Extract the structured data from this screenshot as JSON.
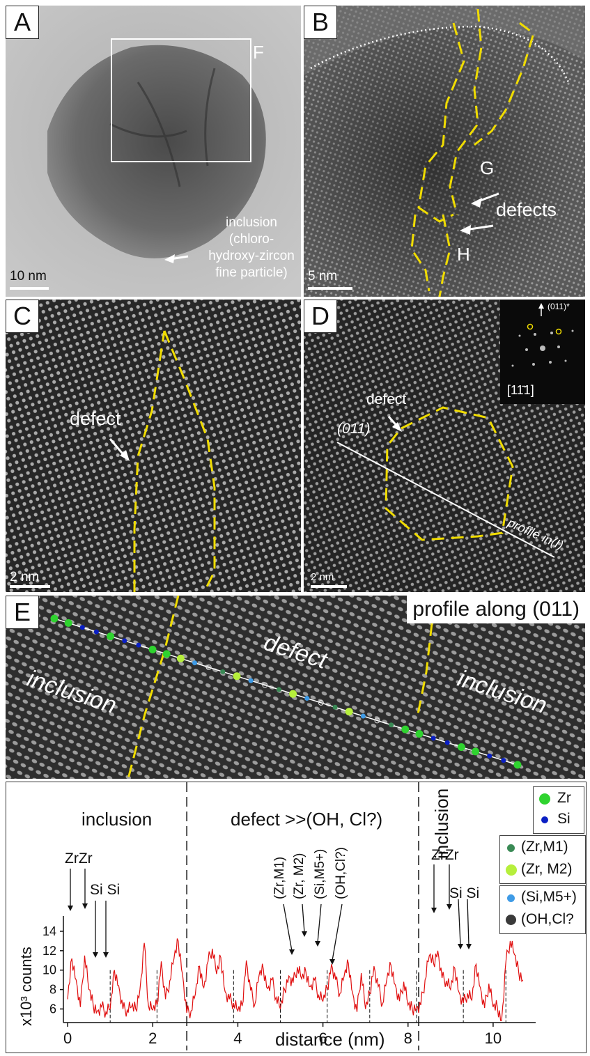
{
  "panels": {
    "A": {
      "letter": "A",
      "box_label": "F",
      "inclusion_text": [
        "inclusion",
        "(chloro-",
        "hydroxy-zircon",
        "fine particle)"
      ],
      "scale": "10 nm"
    },
    "B": {
      "letter": "B",
      "labels": {
        "g": "G",
        "h": "H",
        "defects": "defects"
      },
      "scale": "5 nm"
    },
    "C": {
      "letter": "C",
      "defect": "defect",
      "scale": "2 nm"
    },
    "D": {
      "letter": "D",
      "defect": "defect",
      "plane": "(011)",
      "profile": "profile in(I)",
      "fft_label": "[11̄1]",
      "fft_reflection": "(011)*",
      "scale": "2 nm"
    },
    "E": {
      "letter": "E",
      "title": "profile along (011)",
      "defect": "defect",
      "inclusion_left": "inclusion",
      "inclusion_right": "inclusion"
    }
  },
  "plot": {
    "region_labels": {
      "left": "inclusion",
      "middle": "defect >>(OH, Cl?)",
      "right": "inclusion"
    },
    "peak_labels": {
      "zrzr_left": "ZrZr",
      "sisi_left": "Si Si",
      "zrm1": "(Zr,M1)",
      "zrm2": "(Zr, M2)",
      "sim5": "(Si,M5+)",
      "ohcl": "(OH,Cl?)",
      "zrzr_right": "ZrZr",
      "sisi_right": "Si Si"
    },
    "ylabel": "x10³ counts",
    "xlabel": "distance (nm)",
    "legend": [
      {
        "label": "Zr",
        "color": "#2fd32f"
      },
      {
        "label": "Si",
        "color": "#0a1fc4"
      },
      {
        "label": "(Zr,M1)",
        "color": "#3a8a55"
      },
      {
        "label": "(Zr, M2)",
        "color": "#b6ef3c"
      },
      {
        "label": "(Si,M5+)",
        "color": "#3f9be6"
      },
      {
        "label": "(OH,Cl?",
        "color": "#3a3a3a"
      }
    ]
  },
  "chart_data": {
    "type": "line",
    "title": "",
    "xlabel": "distance (nm)",
    "ylabel": "x10³ counts",
    "xlim": [
      -0.1,
      11.0
    ],
    "ylim": [
      4.6,
      15.0
    ],
    "x_ticks": [
      0,
      2,
      4,
      6,
      8,
      10
    ],
    "y_ticks": [
      6,
      8,
      10,
      12,
      14
    ],
    "region_boundaries": [
      2.8,
      8.25
    ],
    "series": [
      {
        "x": [
          0.0,
          0.1,
          0.2,
          0.3,
          0.4,
          0.5,
          0.6,
          0.7,
          0.8,
          0.9,
          1.0,
          1.1,
          1.2,
          1.3,
          1.4,
          1.5,
          1.6,
          1.7,
          1.8,
          1.9,
          2.0,
          2.1,
          2.2,
          2.3,
          2.4,
          2.5,
          2.6,
          2.7,
          2.8,
          2.9,
          3.0,
          3.1,
          3.2,
          3.3,
          3.4,
          3.5,
          3.6,
          3.7,
          3.8,
          3.9,
          4.0,
          4.1,
          4.2,
          4.3,
          4.4,
          4.5,
          4.6,
          4.7,
          4.8,
          4.9,
          5.0,
          5.1,
          5.2,
          5.3,
          5.4,
          5.5,
          5.6,
          5.7,
          5.8,
          5.9,
          6.0,
          6.1,
          6.2,
          6.3,
          6.4,
          6.5,
          6.6,
          6.7,
          6.8,
          6.9,
          7.0,
          7.1,
          7.2,
          7.3,
          7.4,
          7.5,
          7.6,
          7.7,
          7.8,
          7.9,
          8.0,
          8.1,
          8.2,
          8.3,
          8.4,
          8.5,
          8.6,
          8.7,
          8.8,
          8.9,
          9.0,
          9.1,
          9.2,
          9.3,
          9.4,
          9.5,
          9.6,
          9.7,
          9.8,
          9.9,
          10.0,
          10.1,
          10.2,
          10.3,
          10.4,
          10.5,
          10.6,
          10.7
        ],
        "values": [
          7.0,
          11.2,
          9.0,
          6.2,
          11.5,
          8.0,
          6.4,
          5.8,
          6.2,
          5.7,
          6.0,
          10.0,
          8.4,
          6.0,
          5.9,
          6.2,
          6.0,
          8.0,
          12.8,
          6.3,
          5.9,
          6.4,
          10.9,
          7.0,
          8.9,
          11.2,
          13.0,
          9.6,
          5.6,
          5.8,
          7.5,
          10.4,
          8.2,
          10.9,
          12.2,
          9.6,
          11.3,
          7.8,
          7.0,
          6.6,
          5.8,
          6.3,
          11.0,
          7.9,
          6.5,
          9.5,
          10.1,
          8.1,
          9.0,
          7.2,
          6.0,
          8.0,
          9.4,
          8.7,
          10.3,
          9.1,
          9.8,
          8.3,
          9.0,
          7.4,
          6.8,
          8.1,
          10.6,
          9.0,
          7.6,
          9.4,
          10.7,
          7.6,
          5.7,
          9.7,
          6.0,
          7.6,
          10.4,
          8.3,
          6.5,
          9.0,
          10.5,
          8.5,
          6.8,
          8.8,
          6.4,
          6.0,
          6.2,
          6.4,
          9.0,
          11.5,
          10.7,
          12.0,
          9.2,
          8.9,
          8.0,
          10.2,
          7.7,
          6.6,
          7.6,
          6.9,
          10.6,
          8.2,
          6.1,
          8.6,
          6.2,
          6.2,
          4.8,
          10.8,
          13.0,
          11.6,
          9.8,
          9.0
        ]
      }
    ]
  }
}
